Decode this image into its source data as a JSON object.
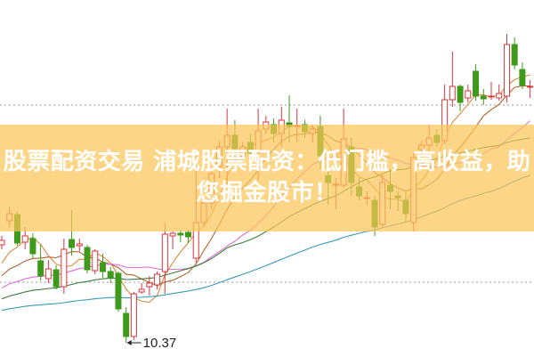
{
  "banner": {
    "line1": "股票配资交易 浦城股票配资：低门槛，高收益，助",
    "line2": "您掘金股市！"
  },
  "chart_data": {
    "type": "candlestick",
    "title": "",
    "low_marker_label": "10.37",
    "colors": {
      "up": "#d9363e",
      "down": "#3f9a1c",
      "ma": [
        "#d98a40",
        "#b0622a",
        "#e070d8",
        "#3c7a3a",
        "#3a9ab8"
      ],
      "banner": "#fbc658"
    },
    "moving_averages_shown": true,
    "grid": "two dotted horizontal lines",
    "candles_ohlc": [
      [
        11.47,
        11.57,
        11.42,
        11.52
      ],
      [
        11.74,
        11.9,
        11.67,
        11.82
      ],
      [
        11.81,
        11.84,
        11.46,
        11.49
      ],
      [
        11.5,
        11.67,
        11.42,
        11.57
      ],
      [
        11.54,
        11.6,
        11.32,
        11.37
      ],
      [
        11.29,
        11.47,
        11.07,
        11.12
      ],
      [
        11.09,
        11.3,
        11.04,
        11.2
      ],
      [
        11.19,
        11.24,
        10.97,
        11.0
      ],
      [
        11.0,
        11.54,
        10.92,
        11.42
      ],
      [
        11.53,
        11.86,
        11.35,
        11.44
      ],
      [
        11.46,
        11.54,
        11.4,
        11.48
      ],
      [
        11.44,
        11.47,
        11.15,
        11.19
      ],
      [
        11.18,
        11.42,
        11.14,
        11.4
      ],
      [
        11.27,
        11.37,
        11.1,
        11.17
      ],
      [
        11.17,
        11.22,
        11.04,
        11.1
      ],
      [
        11.15,
        11.17,
        10.72,
        10.75
      ],
      [
        10.7,
        10.77,
        10.37,
        10.44
      ],
      [
        10.44,
        10.94,
        10.4,
        10.92
      ],
      [
        10.94,
        11.04,
        10.92,
        10.97
      ],
      [
        11.0,
        11.12,
        10.9,
        11.04
      ],
      [
        11.02,
        11.17,
        10.97,
        11.14
      ],
      [
        11.17,
        11.72,
        10.92,
        11.59
      ],
      [
        11.57,
        11.62,
        11.42,
        11.6
      ],
      [
        11.6,
        11.64,
        11.5,
        11.58
      ],
      [
        11.61,
        11.64,
        11.49,
        11.56
      ],
      [
        11.32,
        12.47,
        11.27,
        11.72
      ],
      [
        11.72,
        12.02,
        11.67,
        11.94
      ],
      [
        11.94,
        12.32,
        11.87,
        12.27
      ],
      [
        12.35,
        12.64,
        12.22,
        12.57
      ],
      [
        12.57,
        13.0,
        12.15,
        12.7
      ],
      [
        12.7,
        12.87,
        12.39,
        12.55
      ],
      [
        12.47,
        12.62,
        12.32,
        12.57
      ],
      [
        12.62,
        12.72,
        12.37,
        12.5
      ],
      [
        12.52,
        13.0,
        12.19,
        12.75
      ],
      [
        12.77,
        12.92,
        12.72,
        12.85
      ],
      [
        12.82,
        12.89,
        12.62,
        12.72
      ],
      [
        12.72,
        13.02,
        12.57,
        12.87
      ],
      [
        12.84,
        13.15,
        12.62,
        12.8
      ],
      [
        12.8,
        13.0,
        12.62,
        12.81
      ],
      [
        12.82,
        12.87,
        12.67,
        12.74
      ],
      [
        12.72,
        12.82,
        12.62,
        12.77
      ],
      [
        12.8,
        12.92,
        12.32,
        12.47
      ],
      [
        12.25,
        12.42,
        11.92,
        12.17
      ],
      [
        12.14,
        12.22,
        11.87,
        12.15
      ],
      [
        12.14,
        13.0,
        12.12,
        12.66
      ],
      [
        12.57,
        12.67,
        12.02,
        12.17
      ],
      [
        12.12,
        12.22,
        11.97,
        12.02
      ],
      [
        11.99,
        12.07,
        11.92,
        12.0
      ],
      [
        11.97,
        12.02,
        11.57,
        11.67
      ],
      [
        11.7,
        12.27,
        11.67,
        12.17
      ],
      [
        12.14,
        12.32,
        11.87,
        12.07
      ],
      [
        12.02,
        12.07,
        11.85,
        12.0
      ],
      [
        11.97,
        12.07,
        11.72,
        11.82
      ],
      [
        11.72,
        12.52,
        11.62,
        12.45
      ],
      [
        12.54,
        12.64,
        12.47,
        12.59
      ],
      [
        12.59,
        12.82,
        12.52,
        12.67
      ],
      [
        12.7,
        12.77,
        12.57,
        12.62
      ],
      [
        12.64,
        13.27,
        12.6,
        13.1
      ],
      [
        13.1,
        13.64,
        13.02,
        13.25
      ],
      [
        13.25,
        13.27,
        12.97,
        13.07
      ],
      [
        13.12,
        13.27,
        13.07,
        13.2
      ],
      [
        13.42,
        13.5,
        13.09,
        13.14
      ],
      [
        13.14,
        13.22,
        13.04,
        13.11
      ],
      [
        13.13,
        13.3,
        13.1,
        13.14
      ],
      [
        13.12,
        13.27,
        13.09,
        13.17
      ],
      [
        13.14,
        13.84,
        13.07,
        13.72
      ],
      [
        13.72,
        13.8,
        13.44,
        13.49
      ],
      [
        13.44,
        13.52,
        13.22,
        13.26
      ],
      [
        13.24,
        13.32,
        13.12,
        13.25
      ]
    ]
  }
}
